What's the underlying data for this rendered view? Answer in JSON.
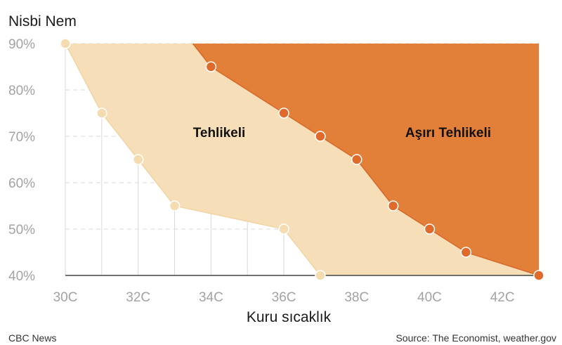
{
  "chart_data": {
    "type": "area",
    "ylabel": "Nisbi Nem",
    "xlabel": "Kuru sıcaklık",
    "x_ticks": [
      "30C",
      "32C",
      "34C",
      "36C",
      "38C",
      "40C",
      "42C"
    ],
    "y_ticks": [
      "40%",
      "50%",
      "60%",
      "70%",
      "80%",
      "90%"
    ],
    "xlim": [
      30,
      43
    ],
    "ylim": [
      40,
      90
    ],
    "grid": true,
    "series": [
      {
        "name": "Tehlikeli",
        "color": "#f6dfb8",
        "marker_color": "#f5dcb0",
        "points": [
          {
            "x": 30,
            "y": 90
          },
          {
            "x": 31,
            "y": 75
          },
          {
            "x": 32,
            "y": 65
          },
          {
            "x": 33,
            "y": 55
          },
          {
            "x": 36,
            "y": 50
          },
          {
            "x": 37,
            "y": 40
          }
        ]
      },
      {
        "name": "Aşırı Tehlikeli",
        "color": "#e27f39",
        "marker_color": "#e06a2c",
        "points": [
          {
            "x": 34,
            "y": 85
          },
          {
            "x": 36,
            "y": 75
          },
          {
            "x": 37,
            "y": 70
          },
          {
            "x": 38,
            "y": 65
          },
          {
            "x": 39,
            "y": 55
          },
          {
            "x": 40,
            "y": 50
          },
          {
            "x": 41,
            "y": 45
          },
          {
            "x": 43,
            "y": 40
          }
        ]
      }
    ]
  },
  "footer": {
    "left": "CBC News",
    "right": "Source: The Economist, weather.gov"
  }
}
